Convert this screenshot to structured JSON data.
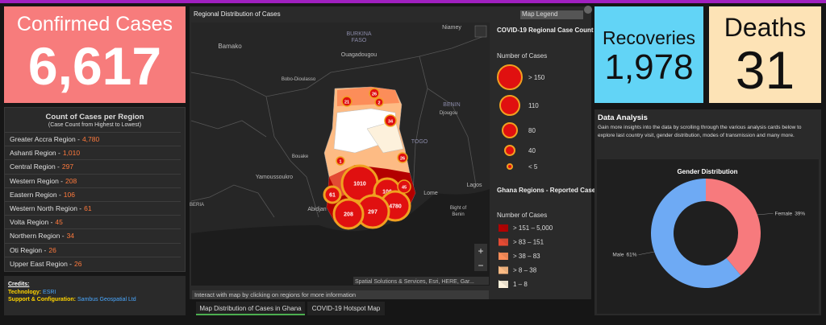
{
  "confirmed": {
    "title": "Confirmed Cases",
    "value": "6,617"
  },
  "recoveries": {
    "title": "Recoveries",
    "value": "1,978"
  },
  "deaths": {
    "title": "Deaths",
    "value": "31"
  },
  "region_list": {
    "title": "Count of Cases per Region",
    "subtitle": "(Case Count from Highest to Lowest)",
    "items": [
      {
        "name": "Greater Accra Region -",
        "count": "4,780"
      },
      {
        "name": "Ashanti Region -",
        "count": "1,010"
      },
      {
        "name": "Central Region -",
        "count": "297"
      },
      {
        "name": "Western Region -",
        "count": "208"
      },
      {
        "name": "Eastern Region -",
        "count": "106"
      },
      {
        "name": "Western North Region -",
        "count": "61"
      },
      {
        "name": "Volta Region -",
        "count": "45"
      },
      {
        "name": "Northern Region -",
        "count": "34"
      },
      {
        "name": "Oti Region -",
        "count": "26"
      },
      {
        "name": "Upper East Region -",
        "count": "26"
      }
    ]
  },
  "credits": {
    "title": "Credits:",
    "technology_label": "Technology:",
    "technology": "ESRI",
    "support_label": "Support & Configuration:",
    "support": "Sambus Geospatial Ltd"
  },
  "map": {
    "title": "Regional Distribution of Cases",
    "legend_button": "Map Legend",
    "places": [
      "Bamako",
      "BURKINA",
      "FASO",
      "Niamey",
      "Ouagadougou",
      "Bobo-Dioulasso",
      "BENIN",
      "Djougou",
      "TOGO",
      "Yamoussoukro",
      "Bouake",
      "Abidjan",
      "Lome",
      "Lagos",
      "Bight of",
      "Benin",
      "BERIA"
    ],
    "clusters": [
      "1010",
      "106",
      "4780",
      "297",
      "208",
      "61",
      "45",
      "34",
      "26",
      "26",
      "21",
      "2",
      "1"
    ],
    "zoom_in": "+",
    "zoom_out": "−",
    "attribution": "Spatial Solutions & Services, Esri, HERE, Gar...",
    "hint": "Interact with map by clicking on regions for more information"
  },
  "legend": {
    "title": "COVID-19 Regional Case Count",
    "subtitle": "Number of Cases",
    "sizes": [
      "> 150",
      "110",
      "80",
      "40",
      "< 5"
    ],
    "regions_title": "Ghana Regions - Reported Cases",
    "regions_subtitle": "Number of Cases",
    "classes": [
      {
        "label": "> 151 – 5,000",
        "color": "#b30000"
      },
      {
        "label": "> 83 – 151",
        "color": "#e34a33"
      },
      {
        "label": "> 38 – 83",
        "color": "#fc8d59"
      },
      {
        "label": "> 8 – 38",
        "color": "#fdbb84"
      },
      {
        "label": "1 – 8",
        "color": "#fdf1dc"
      }
    ]
  },
  "tabs": [
    "Map Distribution of Cases in Ghana",
    "COVID-19 Hotspot Map"
  ],
  "analysis": {
    "title": "Data Analysis",
    "description": "Gain more insights into the data by scrolling through the various analysis cards below to explore last country visit, gender distribution, modes of transmission and many more."
  },
  "chart_data": {
    "type": "pie",
    "title": "Gender Distribution",
    "categories": [
      "Female",
      "Male"
    ],
    "values": [
      39,
      61
    ],
    "value_labels": [
      "39%",
      "61%"
    ],
    "colors": [
      "#f77a7d",
      "#6eaaf4"
    ],
    "donut": true
  }
}
